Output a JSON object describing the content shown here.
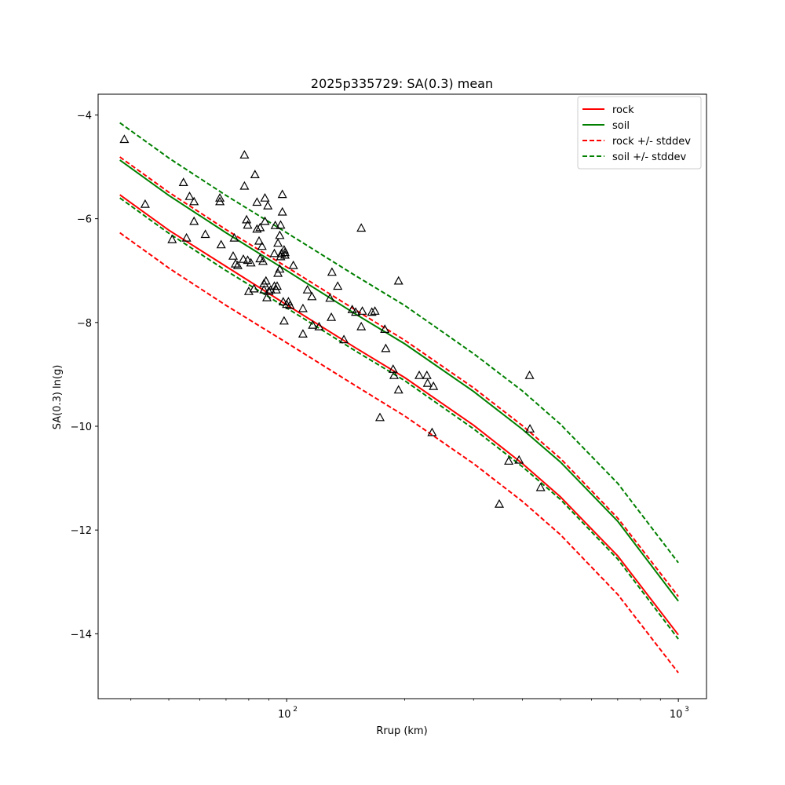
{
  "chart_data": {
    "type": "scatter",
    "title": "2025p335729: SA(0.3) mean",
    "xlabel": "Rrup (km)",
    "ylabel": "SA(0.3) ln(g)",
    "xscale": "log",
    "xlim": [
      33,
      1180
    ],
    "ylim": [
      -15.25,
      -3.6
    ],
    "xticks": [
      {
        "value": 100,
        "label": "10"
      },
      {
        "value": 1000,
        "label": "10"
      }
    ],
    "xtick_exponent": "2",
    "xtick_exponent_2": "3",
    "minor_xticks": [
      40,
      50,
      60,
      70,
      80,
      90,
      200,
      300,
      400,
      500,
      600,
      700,
      800,
      900
    ],
    "yticks": [
      -4,
      -6,
      -8,
      -10,
      -12,
      -14
    ],
    "ytick_labels": [
      "−4",
      "−6",
      "−8",
      "−10",
      "−12",
      "−14"
    ],
    "grid": false,
    "legend_position": "top-right",
    "legend": [
      "rock",
      "soil",
      "rock +/- stddev",
      "soil +/- stddev"
    ],
    "colors": {
      "rock": "#ff0000",
      "soil": "#008000",
      "marker": "#000000"
    },
    "series": [
      {
        "name": "rock",
        "style": "solid",
        "color": "#ff0000",
        "points": [
          [
            37.5,
            -5.54
          ],
          [
            50,
            -6.22
          ],
          [
            70,
            -6.92
          ],
          [
            100,
            -7.66
          ],
          [
            150,
            -8.49
          ],
          [
            200,
            -9.06
          ],
          [
            300,
            -9.98
          ],
          [
            400,
            -10.72
          ],
          [
            500,
            -11.36
          ],
          [
            700,
            -12.5
          ],
          [
            1000,
            -14.02
          ]
        ]
      },
      {
        "name": "soil",
        "style": "solid",
        "color": "#008000",
        "points": [
          [
            37.5,
            -4.87
          ],
          [
            50,
            -5.55
          ],
          [
            70,
            -6.27
          ],
          [
            100,
            -7.0
          ],
          [
            150,
            -7.84
          ],
          [
            200,
            -8.41
          ],
          [
            300,
            -9.33
          ],
          [
            400,
            -10.06
          ],
          [
            500,
            -10.69
          ],
          [
            700,
            -11.83
          ],
          [
            1000,
            -13.37
          ]
        ]
      },
      {
        "name": "rock +/- stddev",
        "style": "dashed",
        "color": "#ff0000",
        "points": [
          [
            37.5,
            -4.81
          ],
          [
            50,
            -5.49
          ],
          [
            70,
            -6.21
          ],
          [
            100,
            -6.93
          ],
          [
            150,
            -7.76
          ],
          [
            200,
            -8.34
          ],
          [
            300,
            -9.26
          ],
          [
            400,
            -9.99
          ],
          [
            500,
            -10.62
          ],
          [
            700,
            -11.77
          ],
          [
            1000,
            -13.28
          ]
        ]
      },
      {
        "name": "rock +/- stddev",
        "style": "dashed",
        "color": "#ff0000",
        "points": [
          [
            37.5,
            -6.27
          ],
          [
            50,
            -6.95
          ],
          [
            70,
            -7.67
          ],
          [
            100,
            -8.39
          ],
          [
            150,
            -9.22
          ],
          [
            200,
            -9.8
          ],
          [
            300,
            -10.72
          ],
          [
            400,
            -11.45
          ],
          [
            500,
            -12.09
          ],
          [
            700,
            -13.24
          ],
          [
            1000,
            -14.75
          ]
        ]
      },
      {
        "name": "soil +/- stddev",
        "style": "dashed",
        "color": "#008000",
        "points": [
          [
            37.5,
            -4.15
          ],
          [
            50,
            -4.83
          ],
          [
            70,
            -5.55
          ],
          [
            100,
            -6.27
          ],
          [
            150,
            -7.1
          ],
          [
            200,
            -7.67
          ],
          [
            300,
            -8.6
          ],
          [
            400,
            -9.32
          ],
          [
            500,
            -9.96
          ],
          [
            700,
            -11.1
          ],
          [
            1000,
            -12.63
          ]
        ]
      },
      {
        "name": "soil +/- stddev",
        "style": "dashed",
        "color": "#008000",
        "points": [
          [
            37.5,
            -5.6
          ],
          [
            50,
            -6.28
          ],
          [
            70,
            -7.0
          ],
          [
            100,
            -7.72
          ],
          [
            150,
            -8.55
          ],
          [
            200,
            -9.12
          ],
          [
            300,
            -10.05
          ],
          [
            400,
            -10.78
          ],
          [
            500,
            -11.41
          ],
          [
            700,
            -12.56
          ],
          [
            1000,
            -14.1
          ]
        ]
      }
    ],
    "observations": [
      [
        38.5,
        -4.47
      ],
      [
        43.5,
        -5.72
      ],
      [
        51,
        -6.4
      ],
      [
        54.5,
        -5.3
      ],
      [
        55.5,
        -6.37
      ],
      [
        56.5,
        -5.57
      ],
      [
        58,
        -6.05
      ],
      [
        58,
        -5.67
      ],
      [
        62,
        -6.3
      ],
      [
        67.5,
        -5.6
      ],
      [
        67.5,
        -5.67
      ],
      [
        68,
        -6.5
      ],
      [
        73,
        -6.72
      ],
      [
        73.5,
        -6.37
      ],
      [
        74,
        -6.87
      ],
      [
        75,
        -6.9
      ],
      [
        77.5,
        -6.78
      ],
      [
        78,
        -5.37
      ],
      [
        78,
        -4.77
      ],
      [
        79,
        -6.02
      ],
      [
        79.5,
        -6.12
      ],
      [
        79.5,
        -6.8
      ],
      [
        80,
        -7.4
      ],
      [
        81,
        -6.85
      ],
      [
        82.5,
        -7.35
      ],
      [
        83,
        -5.15
      ],
      [
        84,
        -6.2
      ],
      [
        84,
        -5.68
      ],
      [
        85,
        -6.43
      ],
      [
        85.5,
        -6.77
      ],
      [
        85.5,
        -6.17
      ],
      [
        86.5,
        -6.53
      ],
      [
        87,
        -6.82
      ],
      [
        87.5,
        -7.37
      ],
      [
        87.5,
        -7.25
      ],
      [
        88,
        -6.05
      ],
      [
        88,
        -5.6
      ],
      [
        88.5,
        -7.2
      ],
      [
        89,
        -7.52
      ],
      [
        89.5,
        -5.75
      ],
      [
        90,
        -7.4
      ],
      [
        91,
        -7.37
      ],
      [
        93,
        -6.67
      ],
      [
        93,
        -7.3
      ],
      [
        93.5,
        -6.13
      ],
      [
        94,
        -7.37
      ],
      [
        94.5,
        -7.3
      ],
      [
        95,
        -6.47
      ],
      [
        95,
        -7.05
      ],
      [
        96,
        -6.97
      ],
      [
        96,
        -6.32
      ],
      [
        96.5,
        -6.12
      ],
      [
        96.5,
        -6.73
      ],
      [
        97,
        -6.67
      ],
      [
        97.5,
        -5.53
      ],
      [
        97.5,
        -5.87
      ],
      [
        98,
        -7.6
      ],
      [
        98.5,
        -7.97
      ],
      [
        98.5,
        -6.6
      ],
      [
        99,
        -6.65
      ],
      [
        99,
        -6.7
      ],
      [
        100,
        -7.65
      ],
      [
        101,
        -7.6
      ],
      [
        102,
        -7.67
      ],
      [
        104,
        -6.9
      ],
      [
        110,
        -7.73
      ],
      [
        110,
        -8.22
      ],
      [
        113,
        -7.37
      ],
      [
        116,
        -7.5
      ],
      [
        116.5,
        -8.05
      ],
      [
        121,
        -8.08
      ],
      [
        129,
        -7.53
      ],
      [
        130,
        -7.9
      ],
      [
        130.5,
        -7.03
      ],
      [
        135,
        -7.3
      ],
      [
        140,
        -8.33
      ],
      [
        147,
        -7.75
      ],
      [
        150,
        -7.8
      ],
      [
        155,
        -6.18
      ],
      [
        155,
        -8.08
      ],
      [
        156,
        -7.78
      ],
      [
        165,
        -7.8
      ],
      [
        168,
        -7.78
      ],
      [
        173,
        -9.83
      ],
      [
        178,
        -8.13
      ],
      [
        179,
        -8.5
      ],
      [
        187,
        -8.9
      ],
      [
        188,
        -9.02
      ],
      [
        193,
        -9.3
      ],
      [
        193,
        -7.2
      ],
      [
        218,
        -9.02
      ],
      [
        228,
        -9.02
      ],
      [
        229,
        -9.17
      ],
      [
        235,
        -10.12
      ],
      [
        237,
        -9.23
      ],
      [
        349,
        -11.5
      ],
      [
        369,
        -10.67
      ],
      [
        392,
        -10.65
      ],
      [
        417,
        -9.02
      ],
      [
        418,
        -10.05
      ],
      [
        445,
        -11.18
      ]
    ]
  }
}
